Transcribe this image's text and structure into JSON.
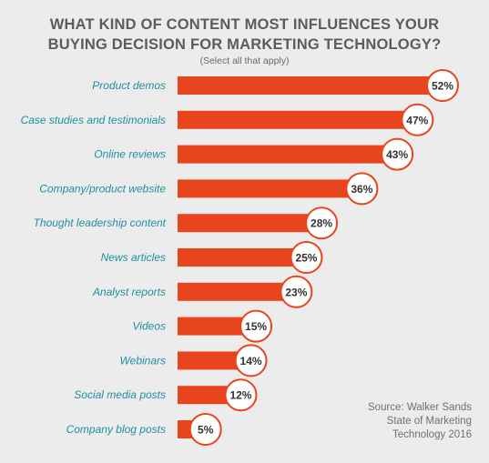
{
  "chart_data": {
    "type": "bar",
    "orientation": "horizontal",
    "title_lines": [
      "WHAT KIND OF CONTENT MOST INFLUENCES YOUR",
      "BUYING DECISION FOR MARKETING TECHNOLOGY?"
    ],
    "subtitle": "(Select all that apply)",
    "categories": [
      "Product demos",
      "Case studies and testimonials",
      "Online reviews",
      "Company/product website",
      "Thought leadership content",
      "News articles",
      "Analyst reports",
      "Videos",
      "Webinars",
      "Social media posts",
      "Company blog posts"
    ],
    "values": [
      52,
      47,
      43,
      36,
      28,
      25,
      23,
      15,
      14,
      12,
      5
    ],
    "value_labels": [
      "52%",
      "47%",
      "43%",
      "36%",
      "28%",
      "25%",
      "23%",
      "15%",
      "14%",
      "12%",
      "5%"
    ],
    "unit": "%",
    "xlim": [
      0,
      52
    ],
    "grid": false,
    "legend": "none",
    "source_lines": [
      "Source: Walker Sands",
      "State of Marketing",
      "Technology 2016"
    ]
  },
  "colors": {
    "background": "#ececec",
    "bar": "#e8451e",
    "label_ring": "#e8451e",
    "label_text": "#333333",
    "category_text": "#1f8fa2",
    "title_text": "#5c5c5c",
    "source_text": "#707070"
  }
}
